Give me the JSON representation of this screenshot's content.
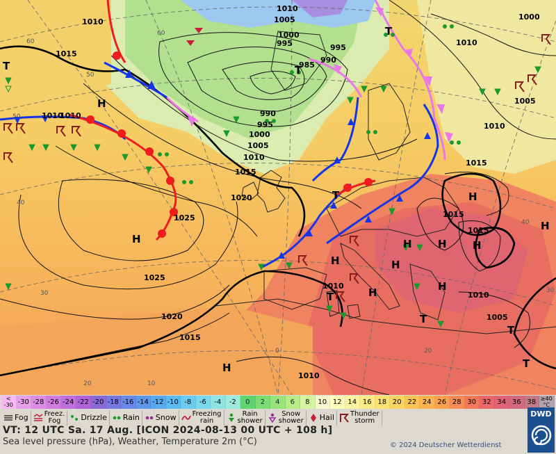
{
  "map": {
    "pressure_labels": [
      {
        "text": "1010"
      },
      {
        "text": "1015"
      },
      {
        "text": "1010"
      },
      {
        "text": "1005"
      },
      {
        "text": "1010"
      },
      {
        "text": "1000"
      },
      {
        "text": "995"
      },
      {
        "text": "995"
      },
      {
        "text": "990"
      },
      {
        "text": "985"
      },
      {
        "text": "990"
      },
      {
        "text": "995"
      },
      {
        "text": "1000"
      },
      {
        "text": "1005"
      },
      {
        "text": "1010"
      },
      {
        "text": "1015"
      },
      {
        "text": "1020"
      },
      {
        "text": "1025"
      },
      {
        "text": "1025"
      },
      {
        "text": "1020"
      },
      {
        "text": "1015"
      },
      {
        "text": "1010"
      },
      {
        "text": "1010"
      },
      {
        "text": "1000"
      },
      {
        "text": "1005"
      },
      {
        "text": "1010"
      },
      {
        "text": "1015"
      },
      {
        "text": "1015"
      },
      {
        "text": "1015"
      },
      {
        "text": "1010"
      },
      {
        "text": "1005"
      },
      {
        "text": "1010"
      },
      {
        "text": "1010"
      }
    ],
    "centers": [
      "H",
      "H",
      "H",
      "H",
      "H",
      "H",
      "H",
      "H",
      "H",
      "H",
      "H",
      "H",
      "T",
      "T",
      "T",
      "T",
      "T",
      "T",
      "T",
      "T"
    ],
    "grid_labels": [
      "60",
      "50",
      "40",
      "30",
      "20",
      "10",
      "0",
      "20",
      "40",
      "50",
      "60",
      "30",
      "40"
    ],
    "front_colors": {
      "cold": "#1434e8",
      "warm": "#ee1c1c",
      "occluded": "#e878e8"
    }
  },
  "legend": {
    "scale": [
      {
        "label": "<\n-30",
        "color": "#f5b8f0"
      },
      {
        "label": "-30",
        "color": "#e8a0e8"
      },
      {
        "label": "-28",
        "color": "#dc8ce4"
      },
      {
        "label": "-26",
        "color": "#d07ce0"
      },
      {
        "label": "-24",
        "color": "#c070dc"
      },
      {
        "label": "-22",
        "color": "#b064d8"
      },
      {
        "label": "-20",
        "color": "#8a6ad8"
      },
      {
        "label": "-18",
        "color": "#7878e0"
      },
      {
        "label": "-16",
        "color": "#6a88e8"
      },
      {
        "label": "-14",
        "color": "#5c98ec"
      },
      {
        "label": "-12",
        "color": "#58aaf0"
      },
      {
        "label": "-10",
        "color": "#5cbcf0"
      },
      {
        "label": "-8",
        "color": "#6cccf0"
      },
      {
        "label": "-6",
        "color": "#7cd8ec"
      },
      {
        "label": "-4",
        "color": "#8ee4e4"
      },
      {
        "label": "-2",
        "color": "#9eeadc"
      },
      {
        "label": "0",
        "color": "#60d470"
      },
      {
        "label": "2",
        "color": "#7cdc70"
      },
      {
        "label": "4",
        "color": "#98e478"
      },
      {
        "label": "6",
        "color": "#b8ec88"
      },
      {
        "label": "8",
        "color": "#d4f4a0"
      },
      {
        "label": "10",
        "color": "#f4f8cc"
      },
      {
        "label": "12",
        "color": "#fcfcbc"
      },
      {
        "label": "14",
        "color": "#fcf4a0"
      },
      {
        "label": "16",
        "color": "#fcec88"
      },
      {
        "label": "18",
        "color": "#fce070"
      },
      {
        "label": "20",
        "color": "#fcd460"
      },
      {
        "label": "22",
        "color": "#fcc454"
      },
      {
        "label": "24",
        "color": "#fcb450"
      },
      {
        "label": "26",
        "color": "#fca050"
      },
      {
        "label": "28",
        "color": "#f88c54"
      },
      {
        "label": "30",
        "color": "#f47858"
      },
      {
        "label": "32",
        "color": "#ec6868"
      },
      {
        "label": "34",
        "color": "#e06474"
      },
      {
        "label": "36",
        "color": "#d46a80"
      },
      {
        "label": "38",
        "color": "#c07a88"
      },
      {
        "label": "≥40\n°C",
        "color": "#b4a4b0"
      }
    ],
    "weather": [
      {
        "label": "Fog",
        "icon": "fog-icon"
      },
      {
        "label": "Freez.\nFog",
        "icon": "freezing-fog-icon"
      },
      {
        "label": "Drizzle",
        "icon": "drizzle-icon"
      },
      {
        "label": "Rain",
        "icon": "rain-icon"
      },
      {
        "label": "Snow",
        "icon": "snow-icon"
      },
      {
        "label": "Freezing\nrain",
        "icon": "freezing-rain-icon"
      },
      {
        "label": "Rain\nshower",
        "icon": "rain-shower-icon"
      },
      {
        "label": "Snow\nshower",
        "icon": "snow-shower-icon"
      },
      {
        "label": "Hail",
        "icon": "hail-icon"
      },
      {
        "label": "Thunder\nstorm",
        "icon": "thunderstorm-icon"
      }
    ],
    "valid_time": "VT: 12 UTC Sa.  17 Aug. [ICON 2024-08-13  00 UTC + 108 h]",
    "subtitle": "Sea level pressure (hPa), Weather, Temperature 2m (°C)",
    "copyright": "© 2024 Deutscher Wetterdienst",
    "logo_text": "DWD"
  }
}
